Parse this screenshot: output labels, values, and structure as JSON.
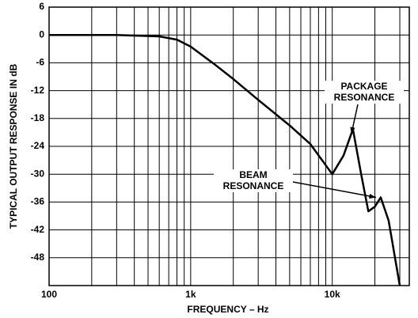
{
  "chart_data": {
    "type": "line",
    "x_label": "FREQUENCY – Hz",
    "y_label": "TYPICAL OUTPUT RESPONSE IN dB",
    "log_x": true,
    "grid": true,
    "xlim": [
      100,
      35000
    ],
    "ylim": [
      -54,
      6
    ],
    "xticks": [
      100,
      {
        "value": 1000,
        "label": "1k"
      },
      {
        "value": 10000,
        "label": "10k"
      }
    ],
    "xminor": [
      200,
      300,
      400,
      500,
      600,
      700,
      800,
      900,
      2000,
      3000,
      4000,
      5000,
      6000,
      7000,
      8000,
      9000,
      20000,
      30000
    ],
    "yticks": [
      6,
      0,
      -6,
      -12,
      -18,
      -24,
      -30,
      -36,
      -42,
      -48
    ],
    "x": [
      100,
      300,
      600,
      800,
      1000,
      1500,
      2000,
      3000,
      5000,
      7000,
      10000,
      12000,
      14000,
      16000,
      18000,
      20000,
      22000,
      25000,
      30000
    ],
    "series": [
      {
        "color": "#000000",
        "values": [
          0,
          0,
          -0.3,
          -1,
          -2.5,
          -6.5,
          -9.5,
          -14,
          -19.5,
          -23.5,
          -30,
          -26,
          -20.3,
          -30,
          -38,
          -37,
          -35,
          -40,
          -54
        ]
      }
    ],
    "annotations": [
      {
        "text": [
          "PACKAGE",
          "RESONANCE"
        ],
        "x": 14000,
        "y": -20.3
      },
      {
        "text": [
          "BEAM",
          "RESONANCE"
        ],
        "x": 22000,
        "y": -35
      }
    ]
  }
}
